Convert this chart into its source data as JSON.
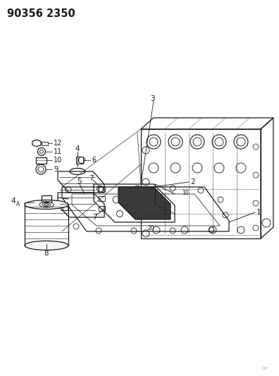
{
  "title": "90356 2350",
  "bg_color": "#ffffff",
  "line_color": "#1a1a1a",
  "figsize": [
    3.96,
    5.33
  ],
  "dpi": 100
}
